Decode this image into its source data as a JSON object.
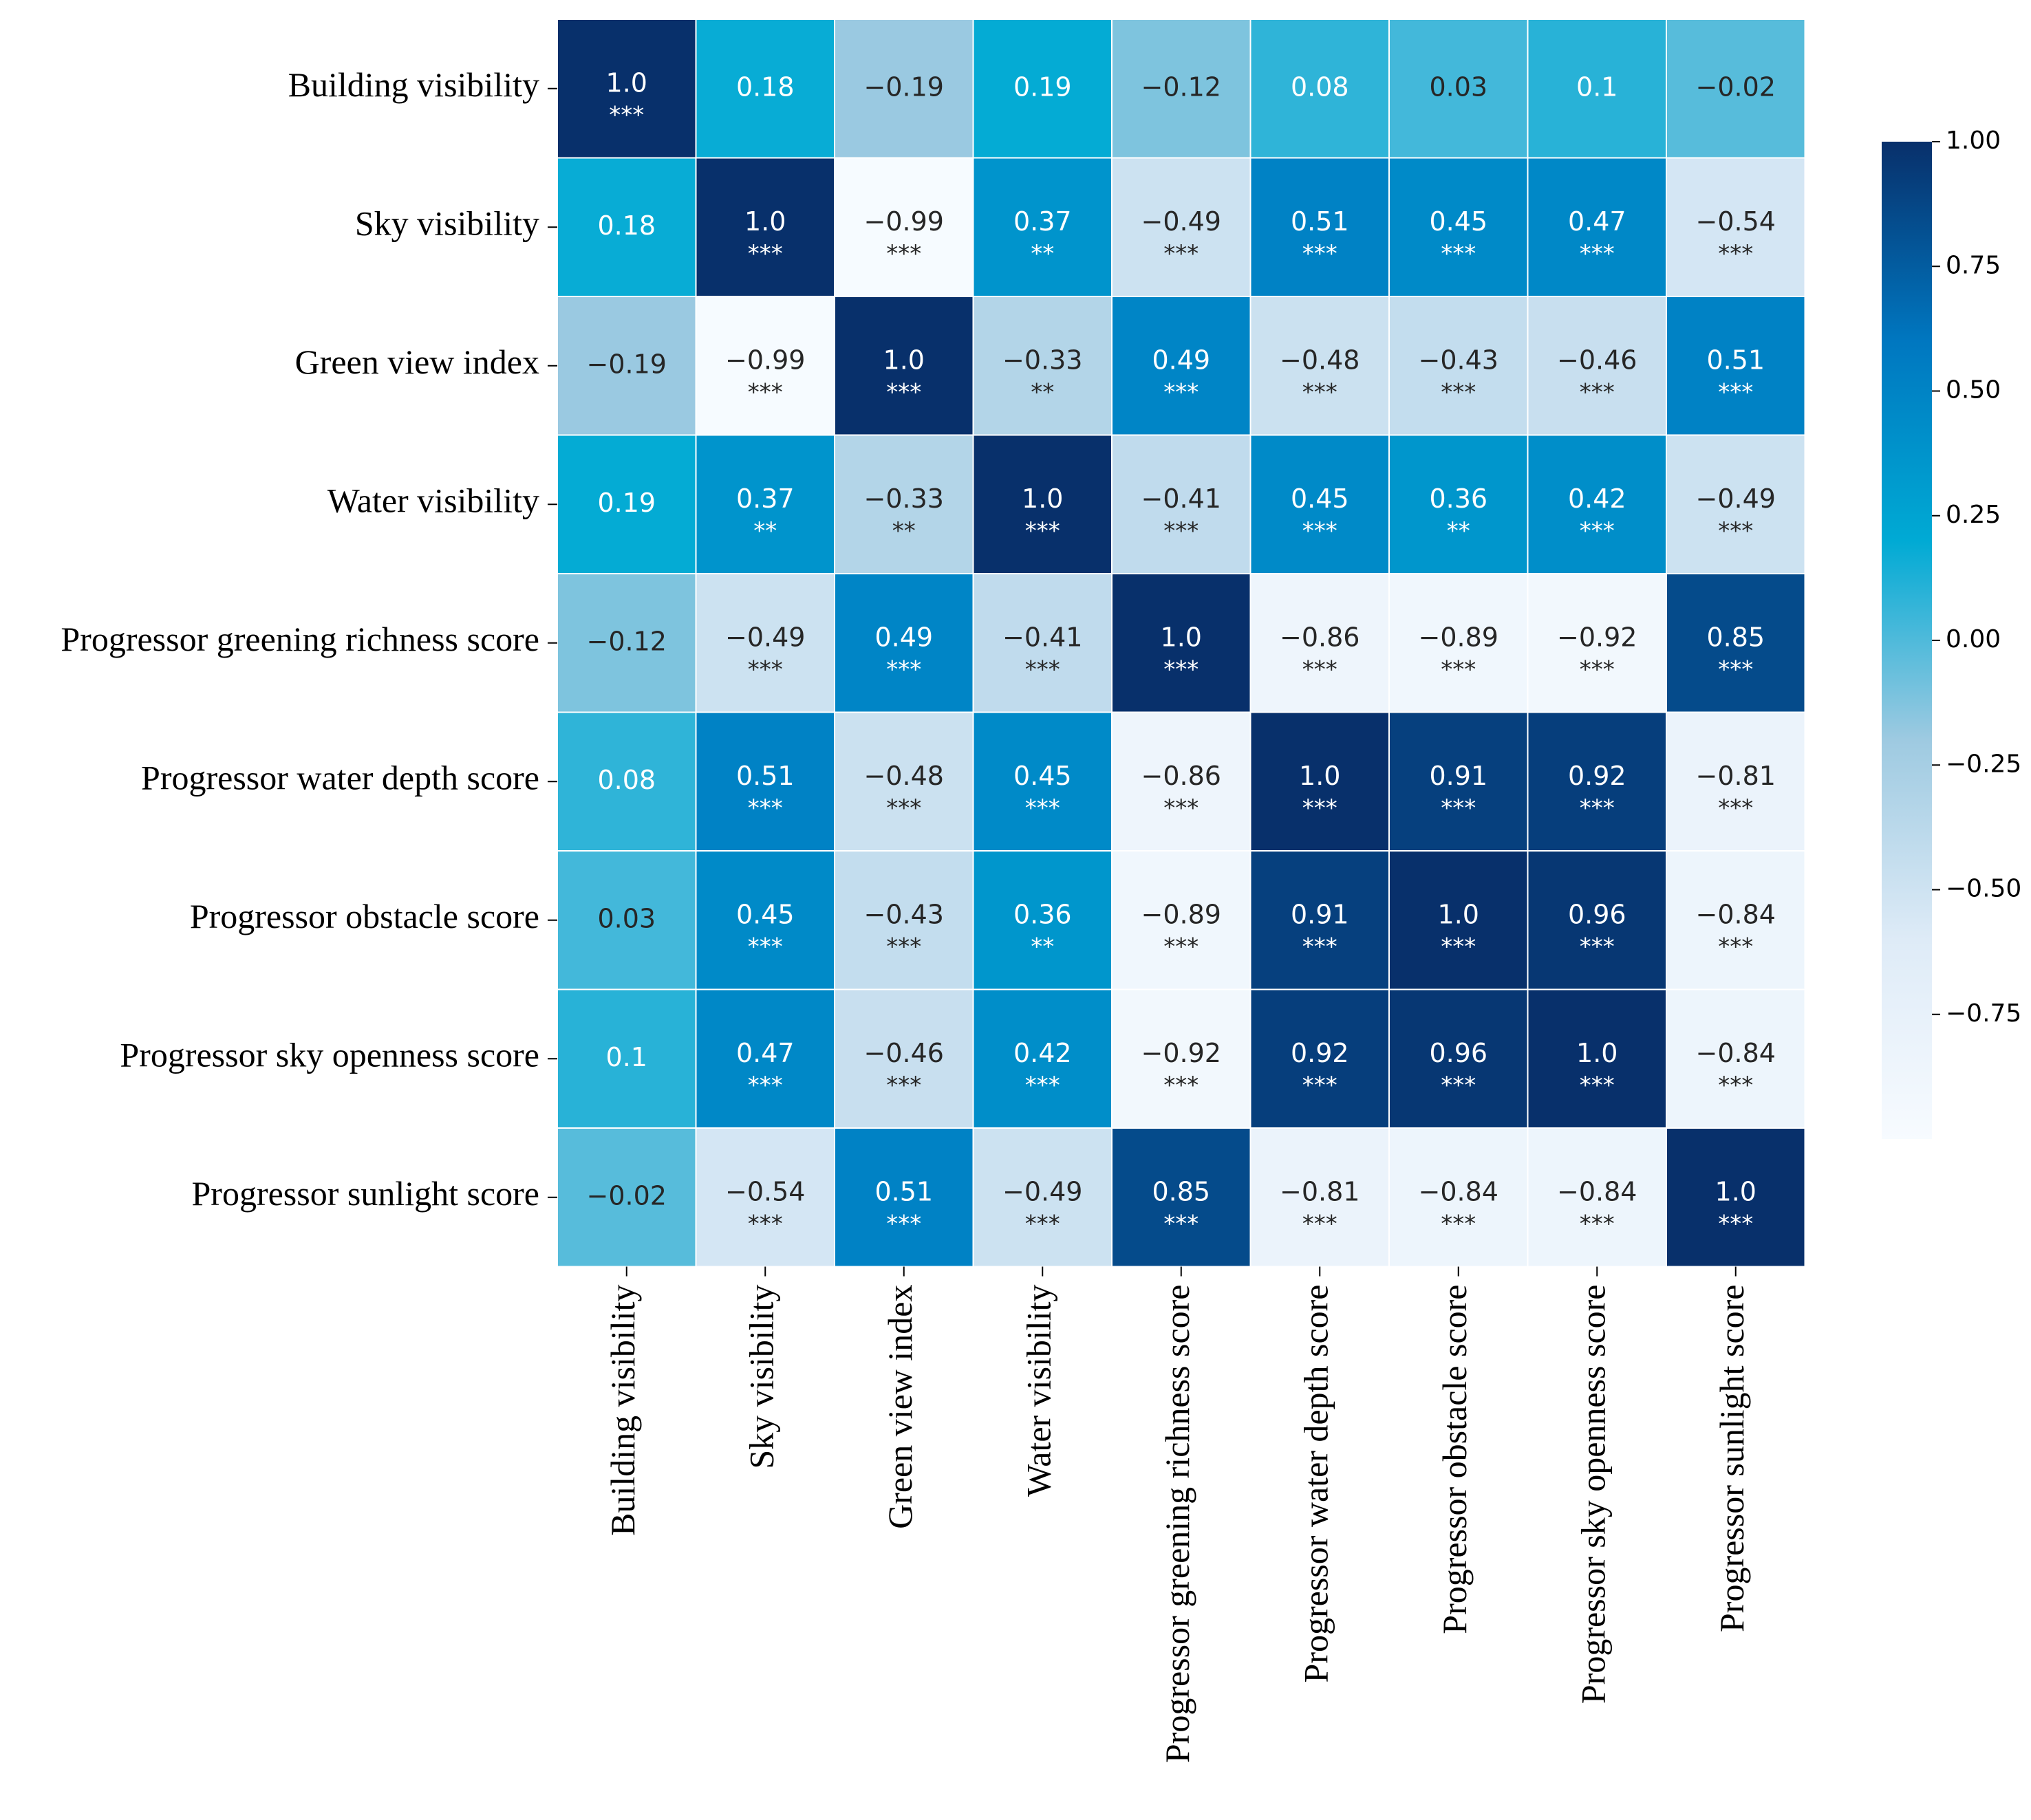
{
  "chart_data": {
    "type": "heatmap",
    "title": "",
    "labels": [
      "Building visibility",
      "Sky visibility",
      "Green view index",
      "Water visibility",
      "Progressor greening richness score",
      "Progressor water depth score",
      "Progressor obstacle score",
      "Progressor sky openness score",
      "Progressor sunlight score"
    ],
    "values": [
      [
        1.0,
        0.18,
        -0.19,
        0.19,
        -0.12,
        0.08,
        0.03,
        0.1,
        -0.02
      ],
      [
        0.18,
        1.0,
        -0.99,
        0.37,
        -0.49,
        0.51,
        0.45,
        0.47,
        -0.54
      ],
      [
        -0.19,
        -0.99,
        1.0,
        -0.33,
        0.49,
        -0.48,
        -0.43,
        -0.46,
        0.51
      ],
      [
        0.19,
        0.37,
        -0.33,
        1.0,
        -0.41,
        0.45,
        0.36,
        0.42,
        -0.49
      ],
      [
        -0.12,
        -0.49,
        0.49,
        -0.41,
        1.0,
        -0.86,
        -0.89,
        -0.92,
        0.85
      ],
      [
        0.08,
        0.51,
        -0.48,
        0.45,
        -0.86,
        1.0,
        0.91,
        0.92,
        -0.81
      ],
      [
        0.03,
        0.45,
        -0.43,
        0.36,
        -0.89,
        0.91,
        1.0,
        0.96,
        -0.84
      ],
      [
        0.1,
        0.47,
        -0.46,
        0.42,
        -0.92,
        0.92,
        0.96,
        1.0,
        -0.84
      ],
      [
        -0.02,
        -0.54,
        0.51,
        -0.49,
        0.85,
        -0.81,
        -0.84,
        -0.84,
        1.0
      ]
    ],
    "display": [
      [
        "1.0",
        "0.18",
        "−0.19",
        "0.19",
        "−0.12",
        "0.08",
        "0.03",
        "0.1",
        "−0.02"
      ],
      [
        "0.18",
        "1.0",
        "−0.99",
        "0.37",
        "−0.49",
        "0.51",
        "0.45",
        "0.47",
        "−0.54"
      ],
      [
        "−0.19",
        "−0.99",
        "1.0",
        "−0.33",
        "0.49",
        "−0.48",
        "−0.43",
        "−0.46",
        "0.51"
      ],
      [
        "0.19",
        "0.37",
        "−0.33",
        "1.0",
        "−0.41",
        "0.45",
        "0.36",
        "0.42",
        "−0.49"
      ],
      [
        "−0.12",
        "−0.49",
        "0.49",
        "−0.41",
        "1.0",
        "−0.86",
        "−0.89",
        "−0.92",
        "0.85"
      ],
      [
        "0.08",
        "0.51",
        "−0.48",
        "0.45",
        "−0.86",
        "1.0",
        "0.91",
        "0.92",
        "−0.81"
      ],
      [
        "0.03",
        "0.45",
        "−0.43",
        "0.36",
        "−0.89",
        "0.91",
        "1.0",
        "0.96",
        "−0.84"
      ],
      [
        "0.1",
        "0.47",
        "−0.46",
        "0.42",
        "−0.92",
        "0.92",
        "0.96",
        "1.0",
        "−0.84"
      ],
      [
        "−0.02",
        "−0.54",
        "0.51",
        "−0.49",
        "0.85",
        "−0.81",
        "−0.84",
        "−0.84",
        "1.0"
      ]
    ],
    "significance": [
      [
        "***",
        "",
        "",
        "",
        "",
        "",
        "",
        "",
        ""
      ],
      [
        "",
        "***",
        "***",
        "**",
        "***",
        "***",
        "***",
        "***",
        "***"
      ],
      [
        "",
        "***",
        "***",
        "**",
        "***",
        "***",
        "***",
        "***",
        "***"
      ],
      [
        "",
        "**",
        "**",
        "***",
        "***",
        "***",
        "**",
        "***",
        "***"
      ],
      [
        "",
        "***",
        "***",
        "***",
        "***",
        "***",
        "***",
        "***",
        "***"
      ],
      [
        "",
        "***",
        "***",
        "***",
        "***",
        "***",
        "***",
        "***",
        "***"
      ],
      [
        "",
        "***",
        "***",
        "**",
        "***",
        "***",
        "***",
        "***",
        "***"
      ],
      [
        "",
        "***",
        "***",
        "***",
        "***",
        "***",
        "***",
        "***",
        "***"
      ],
      [
        "",
        "***",
        "***",
        "***",
        "***",
        "***",
        "***",
        "***",
        "***"
      ]
    ],
    "colorbar": {
      "range": [
        -1.0,
        1.0
      ],
      "ticks": [
        1.0,
        0.75,
        0.5,
        0.25,
        0.0,
        -0.25,
        -0.5,
        -0.75
      ],
      "tick_labels": [
        "1.00",
        "0.75",
        "0.50",
        "0.25",
        "0.00",
        "−0.25",
        "−0.50",
        "−0.75"
      ],
      "colormap": [
        "#f7fbff",
        "#deebf7",
        "#9ecae1",
        "#00aad4",
        "#0077c0",
        "#08306b"
      ]
    }
  }
}
